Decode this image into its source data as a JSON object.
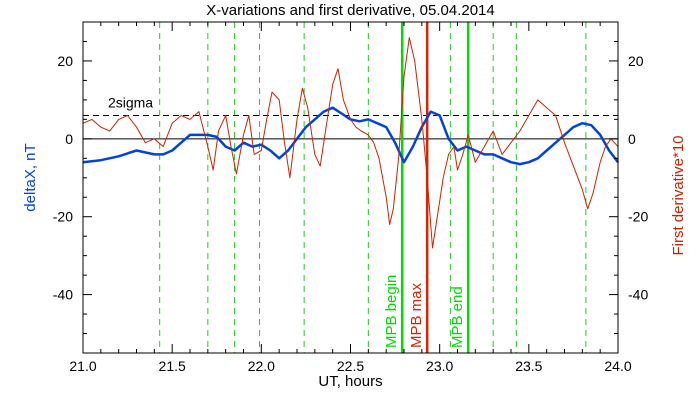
{
  "chart_data": {
    "type": "line",
    "title": "X-variations and first derivative, 05.04.2014",
    "xlabel": "UT, hours",
    "ylabel_left": "deltaX, nT",
    "ylabel_right": "First derivative*10",
    "xlim": [
      21.0,
      24.0
    ],
    "ylim": [
      -55,
      30
    ],
    "x_ticks": [
      21.0,
      21.5,
      22.0,
      22.5,
      23.0,
      23.5,
      24.0
    ],
    "x_tick_labels": [
      "21.0",
      "21.5",
      "22.0",
      "22.5",
      "23.0",
      "23.5",
      "24.0"
    ],
    "y_ticks": [
      20,
      0,
      -20,
      -40
    ],
    "y_tick_labels": [
      "20",
      "0",
      "-20",
      "-40"
    ],
    "x_minor_step": 0.1,
    "y_minor_step": 5,
    "zero_line": 0,
    "threshold": {
      "label": "2sigma",
      "value": 6
    },
    "dashed_verticals": [
      21.43,
      21.7,
      21.85,
      21.99,
      22.24,
      22.6,
      23.06,
      23.3,
      23.43,
      23.82
    ],
    "markers": [
      {
        "label": "MPB begin",
        "x": 22.79,
        "color": "#00dd00"
      },
      {
        "label": "MPB max",
        "x": 22.93,
        "color": "#dd2200"
      },
      {
        "label": "MPB end",
        "x": 23.16,
        "color": "#00dd00"
      }
    ],
    "series": [
      {
        "name": "deltaX, nT",
        "color": "#0044dd",
        "x": [
          21.0,
          21.1,
          21.2,
          21.3,
          21.4,
          21.45,
          21.5,
          21.55,
          21.6,
          21.65,
          21.7,
          21.75,
          21.8,
          21.85,
          21.9,
          21.95,
          22.0,
          22.05,
          22.1,
          22.15,
          22.2,
          22.25,
          22.3,
          22.35,
          22.4,
          22.45,
          22.5,
          22.55,
          22.6,
          22.65,
          22.7,
          22.75,
          22.8,
          22.85,
          22.9,
          22.95,
          23.0,
          23.05,
          23.1,
          23.15,
          23.2,
          23.25,
          23.3,
          23.35,
          23.4,
          23.45,
          23.5,
          23.55,
          23.6,
          23.65,
          23.7,
          23.75,
          23.8,
          23.85,
          23.9,
          23.95,
          24.0
        ],
        "y": [
          -6,
          -5.5,
          -4.5,
          -3,
          -4,
          -4,
          -3,
          -1,
          1,
          1,
          1,
          0.5,
          -2,
          -3,
          -1,
          -2,
          -1.5,
          -3,
          -5,
          -3,
          0,
          3,
          5,
          7,
          8,
          6.5,
          5,
          4.5,
          5,
          4,
          3,
          -1,
          -6,
          -2,
          3,
          7,
          6,
          0,
          -3,
          -2,
          -3,
          -4,
          -4,
          -5,
          -6,
          -6.5,
          -6,
          -5,
          -3,
          -1,
          1,
          3,
          4,
          3.5,
          1,
          -3,
          -6
        ]
      },
      {
        "name": "First derivative*10",
        "color": "#cc2200",
        "x": [
          21.0,
          21.05,
          21.1,
          21.15,
          21.2,
          21.25,
          21.3,
          21.35,
          21.4,
          21.45,
          21.5,
          21.55,
          21.6,
          21.65,
          21.7,
          21.73,
          21.76,
          21.8,
          21.83,
          21.86,
          21.9,
          21.93,
          21.96,
          22.0,
          22.03,
          22.06,
          22.1,
          22.13,
          22.16,
          22.2,
          22.23,
          22.26,
          22.3,
          22.33,
          22.36,
          22.4,
          22.43,
          22.46,
          22.5,
          22.53,
          22.56,
          22.6,
          22.63,
          22.66,
          22.7,
          22.72,
          22.74,
          22.77,
          22.8,
          22.83,
          22.86,
          22.9,
          22.93,
          22.96,
          23.0,
          23.02,
          23.05,
          23.08,
          23.1,
          23.13,
          23.16,
          23.2,
          23.25,
          23.3,
          23.35,
          23.4,
          23.45,
          23.5,
          23.55,
          23.6,
          23.65,
          23.7,
          23.75,
          23.8,
          23.83,
          23.86,
          23.9,
          23.93,
          23.96,
          24.0
        ],
        "y": [
          4,
          5,
          3,
          2,
          5,
          6,
          3,
          -1,
          0,
          -2,
          4,
          6,
          5,
          7,
          -2,
          -8,
          2,
          6,
          -2,
          -9,
          1,
          6,
          -4,
          -3,
          5,
          12,
          10,
          -1,
          -10,
          5,
          13,
          8,
          -4,
          -7,
          2,
          14,
          18,
          10,
          5,
          3,
          2,
          1,
          -1,
          -5,
          -15,
          -22,
          -18,
          -5,
          16,
          26,
          20,
          5,
          -10,
          -28,
          -16,
          -10,
          -4,
          -2,
          -8,
          -4,
          1,
          -6,
          -2,
          2,
          -4,
          -1,
          2,
          6,
          10,
          8,
          6,
          -1,
          -7,
          -13,
          -18,
          -14,
          -6,
          -2,
          0,
          -2
        ]
      }
    ]
  }
}
